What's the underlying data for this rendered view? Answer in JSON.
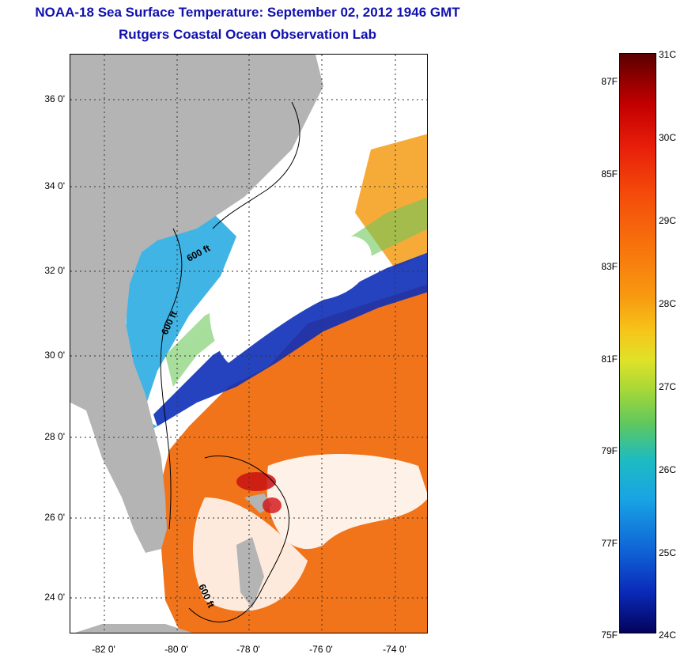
{
  "header": {
    "title": "NOAA-18 Sea Surface Temperature:  September 02, 2012 1946 GMT",
    "subtitle": "Rutgers Coastal Ocean Observation Lab"
  },
  "map": {
    "lat_labels": [
      "36 0'",
      "34 0'",
      "32 0'",
      "30 0'",
      "28 0'",
      "26 0'",
      "24 0'"
    ],
    "lon_labels": [
      "-82 0'",
      "-80 0'",
      "-78 0'",
      "-76 0'",
      "-74 0'"
    ],
    "contour_labels": [
      "600 ft",
      "600 ft",
      "600 ft"
    ],
    "colors": {
      "land": "#b4b4b4",
      "cloud": "#ffffff"
    }
  },
  "colorbar": {
    "fahrenheit_labels": [
      "87F",
      "85F",
      "83F",
      "81F",
      "79F",
      "77F",
      "75F"
    ],
    "celsius_labels": [
      "31C",
      "30C",
      "29C",
      "28C",
      "27C",
      "26C",
      "25C",
      "24C"
    ],
    "range_c": [
      24,
      31
    ]
  }
}
